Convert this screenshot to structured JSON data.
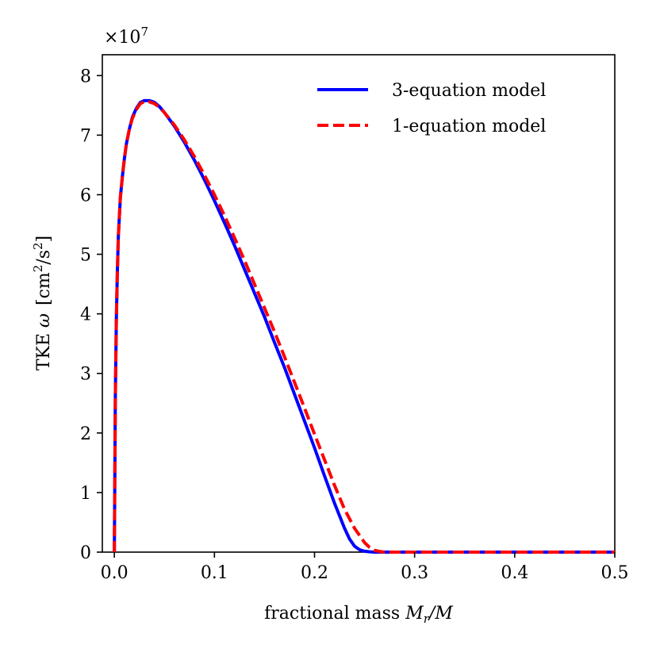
{
  "chart_data": {
    "type": "line",
    "title": "",
    "xlabel": "fractional mass M_r/M",
    "xlabel_parts": {
      "text": "fractional mass ",
      "var": "M",
      "sub": "r",
      "rest": "/M"
    },
    "ylabel": "TKE ω [cm²/s²]",
    "ylabel_parts": {
      "text": "TKE ",
      "var": "ω",
      "unit_open": "[cm",
      "sup1": "2",
      "mid": "/s",
      "sup2": "2",
      "unit_close": "]"
    },
    "y_multiplier": {
      "base": "×10",
      "exp": "7"
    },
    "xlim": [
      -0.012,
      0.5
    ],
    "ylim": [
      0,
      8.35
    ],
    "xticks": [
      0.0,
      0.1,
      0.2,
      0.3,
      0.4,
      0.5
    ],
    "xtick_labels": [
      "0.0",
      "0.1",
      "0.2",
      "0.3",
      "0.4",
      "0.5"
    ],
    "yticks": [
      0,
      1,
      2,
      3,
      4,
      5,
      6,
      7,
      8
    ],
    "ytick_labels": [
      "0",
      "1",
      "2",
      "3",
      "4",
      "5",
      "6",
      "7",
      "8"
    ],
    "grid": false,
    "legend_position": "top-right",
    "series": [
      {
        "name": "3-equation model",
        "color": "#0000ff",
        "style": "solid",
        "x": [
          0.0,
          0.001,
          0.002,
          0.003,
          0.004,
          0.006,
          0.008,
          0.01,
          0.012,
          0.015,
          0.018,
          0.022,
          0.026,
          0.03,
          0.035,
          0.04,
          0.045,
          0.05,
          0.06,
          0.07,
          0.08,
          0.09,
          0.1,
          0.11,
          0.12,
          0.13,
          0.14,
          0.15,
          0.16,
          0.17,
          0.18,
          0.19,
          0.2,
          0.21,
          0.22,
          0.23,
          0.235,
          0.24,
          0.245,
          0.25,
          0.255,
          0.26,
          0.27,
          0.3,
          0.4,
          0.5
        ],
        "y": [
          0.0,
          2.6,
          3.9,
          4.7,
          5.3,
          5.95,
          6.3,
          6.6,
          6.85,
          7.1,
          7.3,
          7.45,
          7.55,
          7.58,
          7.58,
          7.55,
          7.48,
          7.38,
          7.15,
          6.88,
          6.58,
          6.25,
          5.9,
          5.53,
          5.15,
          4.75,
          4.35,
          3.95,
          3.52,
          3.1,
          2.65,
          2.2,
          1.75,
          1.28,
          0.82,
          0.4,
          0.22,
          0.1,
          0.04,
          0.015,
          0.005,
          0.0,
          0.0,
          0.0,
          0.0,
          0.0
        ]
      },
      {
        "name": "1-equation model",
        "color": "#ff0000",
        "style": "dashed",
        "x": [
          0.0,
          0.001,
          0.002,
          0.003,
          0.004,
          0.006,
          0.008,
          0.01,
          0.012,
          0.015,
          0.018,
          0.022,
          0.026,
          0.03,
          0.035,
          0.04,
          0.045,
          0.05,
          0.06,
          0.07,
          0.08,
          0.09,
          0.1,
          0.11,
          0.12,
          0.13,
          0.14,
          0.15,
          0.16,
          0.17,
          0.18,
          0.19,
          0.2,
          0.21,
          0.22,
          0.23,
          0.24,
          0.25,
          0.255,
          0.26,
          0.265,
          0.27,
          0.275,
          0.3,
          0.4,
          0.5
        ],
        "y": [
          0.0,
          2.6,
          3.9,
          4.7,
          5.3,
          5.95,
          6.3,
          6.6,
          6.85,
          7.1,
          7.28,
          7.43,
          7.53,
          7.56,
          7.56,
          7.53,
          7.47,
          7.38,
          7.17,
          6.92,
          6.64,
          6.33,
          6.0,
          5.65,
          5.28,
          4.9,
          4.5,
          4.1,
          3.7,
          3.28,
          2.85,
          2.42,
          1.98,
          1.55,
          1.12,
          0.72,
          0.4,
          0.16,
          0.08,
          0.03,
          0.01,
          0.0,
          0.0,
          0.0,
          0.0,
          0.0
        ]
      }
    ]
  }
}
